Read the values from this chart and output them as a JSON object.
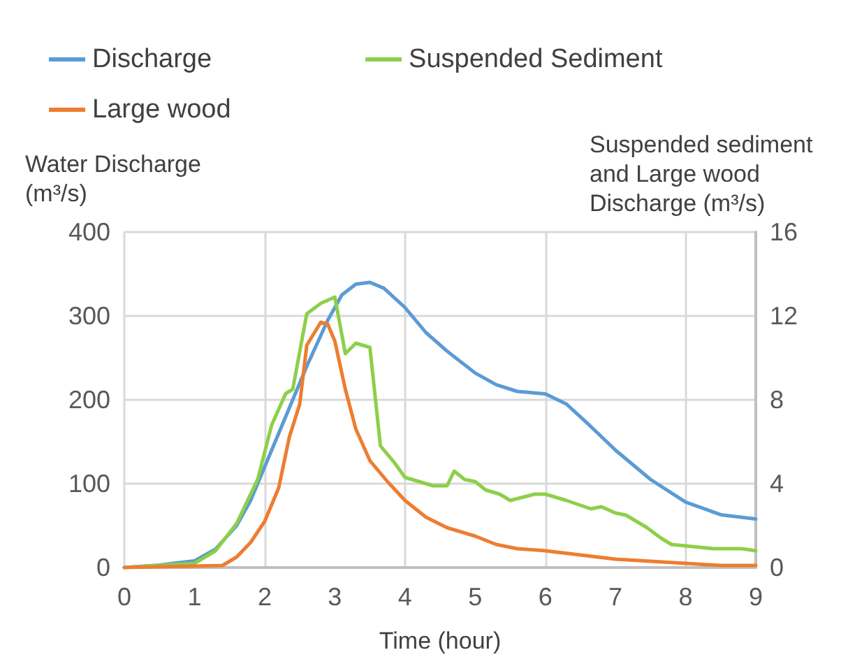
{
  "chart_data": {
    "type": "line",
    "xlabel": "Time (hour)",
    "ylabel": "Water Discharge (m³/s)",
    "y2label": "Suspended sediment and Large wood Discharge (m³/s)",
    "xlim": [
      0,
      9
    ],
    "xticks": [
      0,
      1,
      2,
      3,
      4,
      5,
      6,
      7,
      8,
      9
    ],
    "ylim": [
      0,
      400
    ],
    "yticks": [
      0,
      100,
      200,
      300,
      400
    ],
    "y2lim": [
      0,
      16
    ],
    "y2ticks": [
      0,
      4,
      8,
      12,
      16
    ],
    "grid": true,
    "legend": "top",
    "marker": "none",
    "line_style": "solid",
    "series": [
      {
        "name": "Discharge",
        "color": "#5b9bd5",
        "x": [
          0,
          0.5,
          1,
          1.3,
          1.6,
          1.8,
          2,
          2.3,
          2.6,
          2.9,
          3.1,
          3.3,
          3.5,
          3.7,
          4,
          4.3,
          4.6,
          5,
          5.3,
          5.6,
          6,
          6.3,
          6.6,
          7,
          7.5,
          8,
          8.5,
          9
        ],
        "values": [
          0,
          3,
          8,
          22,
          50,
          80,
          120,
          180,
          240,
          295,
          325,
          338,
          340,
          333,
          310,
          280,
          258,
          232,
          218,
          210,
          207,
          195,
          172,
          140,
          105,
          78,
          63,
          58
        ]
      },
      {
        "name": "Suspended Sediment",
        "color": "#8cd04a",
        "axis": "y2",
        "x": [
          0,
          1,
          1.3,
          1.6,
          1.9,
          2.1,
          2.3,
          2.4,
          2.6,
          2.8,
          3,
          3.15,
          3.3,
          3.5,
          3.65,
          3.85,
          4,
          4.4,
          4.6,
          4.7,
          4.85,
          5,
          5.15,
          5.35,
          5.5,
          5.85,
          6,
          6.3,
          6.65,
          6.8,
          7,
          7.15,
          7.45,
          7.65,
          7.8,
          8.1,
          8.4,
          8.8,
          9
        ],
        "values": [
          0,
          0.2,
          0.8,
          2.1,
          4.2,
          6.8,
          8.3,
          8.5,
          12.1,
          12.6,
          12.9,
          10.2,
          10.7,
          10.5,
          5.8,
          5.0,
          4.3,
          3.9,
          3.9,
          4.6,
          4.2,
          4.1,
          3.7,
          3.5,
          3.2,
          3.5,
          3.5,
          3.2,
          2.8,
          2.9,
          2.6,
          2.5,
          1.9,
          1.4,
          1.1,
          1.0,
          0.9,
          0.9,
          0.8
        ]
      },
      {
        "name": "Large wood",
        "color": "#ed7d31",
        "axis": "y2",
        "x": [
          0,
          1.4,
          1.6,
          1.8,
          2,
          2.2,
          2.35,
          2.5,
          2.6,
          2.8,
          2.9,
          3,
          3.15,
          3.3,
          3.5,
          3.75,
          4,
          4.3,
          4.6,
          5,
          5.3,
          5.6,
          6,
          6.5,
          7,
          7.5,
          8,
          8.5,
          9
        ],
        "values": [
          0,
          0.1,
          0.5,
          1.2,
          2.2,
          3.8,
          6.2,
          7.8,
          10.6,
          11.7,
          11.6,
          10.8,
          8.5,
          6.6,
          5.1,
          4.1,
          3.2,
          2.4,
          1.9,
          1.5,
          1.1,
          0.9,
          0.8,
          0.6,
          0.4,
          0.3,
          0.2,
          0.1,
          0.1
        ]
      }
    ]
  }
}
